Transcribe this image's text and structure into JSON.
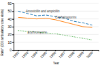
{
  "chart_data": {
    "type": "line",
    "x": [
      1992,
      1993,
      1994,
      1995,
      1996,
      1997,
      1998,
      1999,
      2000
    ],
    "series": [
      {
        "values": [
          50,
          47,
          44,
          45,
          43,
          41,
          37,
          35,
          32
        ],
        "line_style": "dashed"
      },
      {
        "values": [
          42,
          41,
          40,
          41,
          39,
          36,
          33,
          30,
          29
        ],
        "line_style": "solid"
      },
      {
        "values": [
          25,
          24,
          23,
          22,
          21,
          19,
          17,
          15,
          13
        ],
        "line_style": "dotted"
      }
    ],
    "annotations": [
      {
        "text": "Amoxicillin and ampicillin",
        "x": 1992.8,
        "y": 48.5
      },
      {
        "text": "Cephalosporins",
        "x": 1996.0,
        "y": 40.5
      },
      {
        "text": "Erythromycins",
        "x": 1993.0,
        "y": 21.5
      }
    ],
    "xlabel": "Year",
    "ylabel": "Rate* (000 ambulatory care visits)",
    "xlim": [
      1991.5,
      2000.7
    ],
    "ylim": [
      0,
      60
    ],
    "xticks": [
      1992,
      1993,
      1994,
      1995,
      1996,
      1997,
      1998,
      1999,
      2000
    ],
    "yticks": [
      0,
      10,
      20,
      30,
      40,
      50,
      60
    ],
    "grid": true
  }
}
